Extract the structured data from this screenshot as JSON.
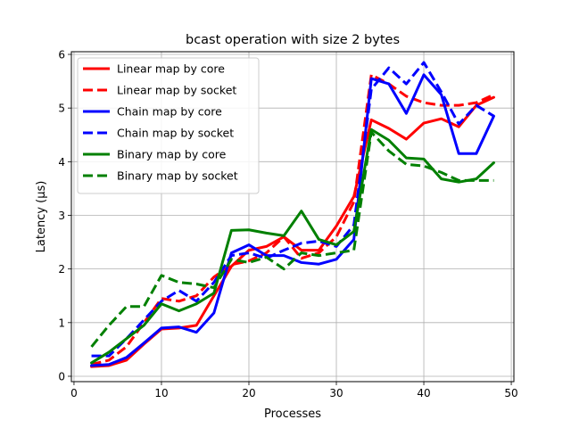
{
  "chart_data": {
    "type": "line",
    "title": "bcast operation with size 2 bytes",
    "xlabel": "Processes",
    "ylabel": "Latency (μs)",
    "xlim": [
      -0.3,
      50.3
    ],
    "ylim": [
      -0.1,
      6.05
    ],
    "xticks": [
      0,
      10,
      20,
      30,
      40,
      50
    ],
    "yticks": [
      0,
      1,
      2,
      3,
      4,
      5,
      6
    ],
    "grid": true,
    "legend_position": "top-left",
    "x": [
      2,
      4,
      6,
      8,
      10,
      12,
      14,
      16,
      18,
      20,
      22,
      24,
      26,
      28,
      30,
      32,
      34,
      36,
      38,
      40,
      42,
      44,
      46,
      48
    ],
    "series": [
      {
        "name": "Linear map by core",
        "color": "#ff0000",
        "dash": "solid",
        "values": [
          0.18,
          0.2,
          0.3,
          0.6,
          0.88,
          0.9,
          0.95,
          1.5,
          2.05,
          2.35,
          2.42,
          2.6,
          2.35,
          2.35,
          2.8,
          3.35,
          4.78,
          4.62,
          4.42,
          4.72,
          4.8,
          4.65,
          5.05,
          5.2
        ]
      },
      {
        "name": "Linear map by socket",
        "color": "#ff0000",
        "dash": "dashed",
        "values": [
          0.22,
          0.3,
          0.55,
          1.0,
          1.45,
          1.4,
          1.5,
          1.85,
          2.08,
          2.15,
          2.3,
          2.6,
          2.2,
          2.3,
          2.6,
          3.25,
          5.62,
          5.45,
          5.22,
          5.1,
          5.05,
          5.05,
          5.1,
          5.25
        ]
      },
      {
        "name": "Chain map by core",
        "color": "#0000ff",
        "dash": "solid",
        "values": [
          0.2,
          0.22,
          0.35,
          0.62,
          0.9,
          0.92,
          0.82,
          1.18,
          2.3,
          2.45,
          2.25,
          2.25,
          2.12,
          2.09,
          2.18,
          2.55,
          5.55,
          5.45,
          4.9,
          5.62,
          5.25,
          4.15,
          4.15,
          4.85
        ]
      },
      {
        "name": "Chain map by socket",
        "color": "#0000ff",
        "dash": "dashed",
        "values": [
          0.38,
          0.38,
          0.7,
          1.05,
          1.4,
          1.6,
          1.4,
          1.75,
          2.25,
          2.3,
          2.2,
          2.35,
          2.48,
          2.52,
          2.42,
          2.82,
          5.35,
          5.75,
          5.45,
          5.85,
          5.3,
          4.7,
          5.05,
          4.85
        ]
      },
      {
        "name": "Binary map by core",
        "color": "#008000",
        "dash": "solid",
        "values": [
          0.25,
          0.45,
          0.7,
          0.95,
          1.35,
          1.22,
          1.35,
          1.55,
          2.72,
          2.73,
          2.67,
          2.62,
          3.08,
          2.55,
          2.45,
          2.7,
          4.6,
          4.4,
          4.07,
          4.05,
          3.68,
          3.62,
          3.68,
          3.98
        ]
      },
      {
        "name": "Binary map by socket",
        "color": "#008000",
        "dash": "dashed",
        "values": [
          0.55,
          0.95,
          1.3,
          1.3,
          1.88,
          1.75,
          1.72,
          1.65,
          2.18,
          2.12,
          2.22,
          2.0,
          2.3,
          2.25,
          2.3,
          2.35,
          4.55,
          4.2,
          3.95,
          3.92,
          3.8,
          3.65,
          3.65,
          3.65
        ]
      }
    ]
  }
}
